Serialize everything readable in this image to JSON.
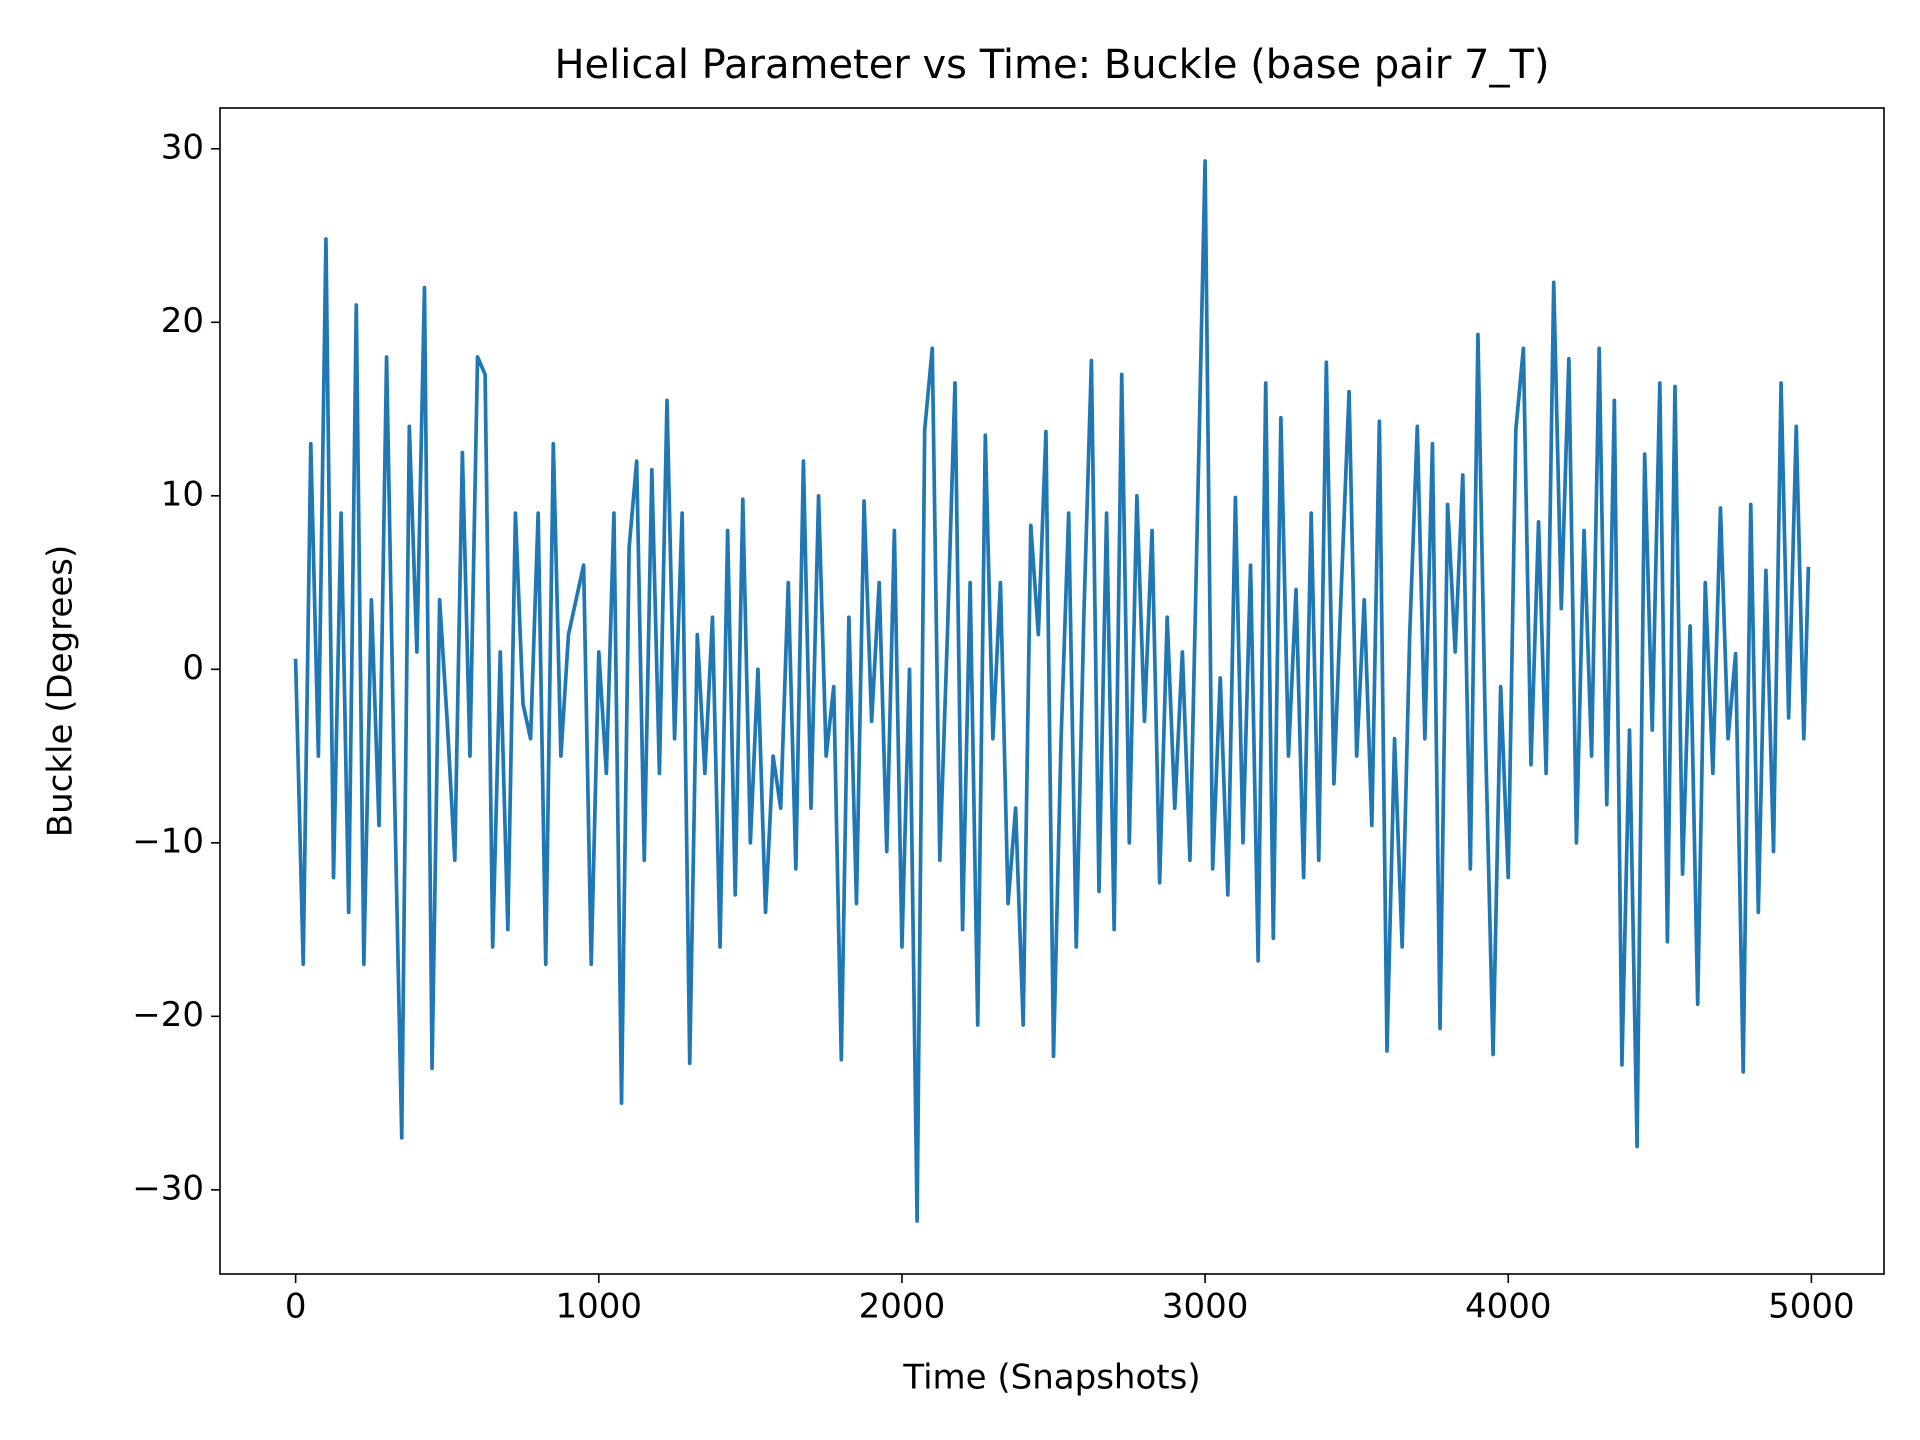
{
  "chart_data": {
    "type": "line",
    "title": "Helical Parameter vs Time: Buckle (base pair  7_T)",
    "x_label": "Time (Snapshots)",
    "y_label": "Buckle (Degrees)",
    "color": "#1f77b4",
    "x": [
      0,
      25,
      50,
      75,
      100,
      125,
      150,
      175,
      200,
      225,
      250,
      275,
      300,
      325,
      350,
      375,
      400,
      425,
      450,
      475,
      500,
      525,
      550,
      575,
      600,
      625,
      650,
      675,
      700,
      725,
      750,
      775,
      800,
      825,
      850,
      875,
      900,
      925,
      950,
      975,
      1000,
      1025,
      1050,
      1075,
      1100,
      1125,
      1150,
      1175,
      1200,
      1225,
      1250,
      1275,
      1300,
      1325,
      1350,
      1375,
      1400,
      1425,
      1450,
      1475,
      1500,
      1525,
      1550,
      1575,
      1600,
      1625,
      1650,
      1675,
      1700,
      1725,
      1750,
      1775,
      1800,
      1825,
      1850,
      1875,
      1900,
      1925,
      1950,
      1975,
      2000,
      2025,
      2050,
      2075,
      2100,
      2125,
      2150,
      2175,
      2200,
      2225,
      2250,
      2275,
      2300,
      2325,
      2350,
      2375,
      2400,
      2425,
      2450,
      2475,
      2500,
      2525,
      2550,
      2575,
      2600,
      2625,
      2650,
      2675,
      2700,
      2725,
      2750,
      2775,
      2800,
      2825,
      2850,
      2875,
      2900,
      2925,
      2950,
      2975,
      3000,
      3025,
      3050,
      3075,
      3100,
      3125,
      3150,
      3175,
      3200,
      3225,
      3250,
      3275,
      3300,
      3325,
      3350,
      3375,
      3400,
      3425,
      3450,
      3475,
      3500,
      3525,
      3550,
      3575,
      3600,
      3625,
      3650,
      3675,
      3700,
      3725,
      3750,
      3775,
      3800,
      3825,
      3850,
      3875,
      3900,
      3925,
      3950,
      3975,
      4000,
      4025,
      4050,
      4075,
      4100,
      4125,
      4150,
      4175,
      4200,
      4225,
      4250,
      4275,
      4300,
      4325,
      4350,
      4375,
      4400,
      4425,
      4450,
      4475,
      4500,
      4525,
      4550,
      4575,
      4600,
      4625,
      4650,
      4675,
      4700,
      4725,
      4750,
      4775,
      4800,
      4825,
      4850,
      4875,
      4900,
      4925,
      4950,
      4975,
      4990
    ],
    "values": [
      0.5,
      -17,
      13,
      -5,
      24.8,
      -12,
      9,
      -14,
      21,
      -17,
      4,
      -9,
      18,
      -6,
      -27,
      14,
      1,
      22,
      -23,
      4,
      -3,
      -11,
      12.5,
      -5,
      18,
      17,
      -16,
      1,
      -15,
      9,
      -2,
      -4,
      9,
      -17,
      13,
      -5,
      2,
      4,
      6,
      -17,
      1,
      -6,
      9,
      -25,
      7,
      12,
      -11,
      11.5,
      -6,
      15.5,
      -4,
      9,
      -22.7,
      2,
      -6,
      3,
      -16,
      8,
      -13,
      9.8,
      -10,
      0,
      -14,
      -5,
      -8,
      5,
      -11.5,
      12,
      -8,
      10,
      -5,
      -1,
      -22.5,
      3,
      -13.5,
      9.7,
      -3,
      5,
      -10.5,
      8,
      -16,
      0,
      -31.8,
      13.8,
      18.5,
      -11,
      2,
      16.5,
      -15,
      5,
      -20.5,
      13.5,
      -4,
      5,
      -13.5,
      -8,
      -20.5,
      8.3,
      2,
      13.7,
      -22.3,
      -4,
      9,
      -16,
      3,
      17.8,
      -12.8,
      9,
      -15,
      17,
      -10,
      10,
      -3,
      8,
      -12.3,
      3,
      -8,
      1,
      -11,
      9,
      29.3,
      -11.5,
      -0.5,
      -13,
      9.9,
      -10,
      6,
      -16.8,
      16.5,
      -15.5,
      14.5,
      -5,
      4.6,
      -12,
      9,
      -11,
      17.7,
      -6.6,
      5,
      16,
      -5,
      4,
      -9,
      14.3,
      -22,
      -4,
      -16,
      2,
      14,
      -4,
      13,
      -20.7,
      9.5,
      1,
      11.2,
      -11.5,
      19.3,
      -4,
      -22.2,
      -1,
      -12,
      13.8,
      18.5,
      -5.5,
      8.5,
      -6,
      22.3,
      3.5,
      17.9,
      -10,
      8,
      -5,
      18.5,
      -7.8,
      15.5,
      -22.8,
      -3.5,
      -27.5,
      12.4,
      -3.5,
      16.5,
      -15.7,
      16.3,
      -11.8,
      2.5,
      -19.3,
      5,
      -6,
      9.3,
      -4,
      0.9,
      -23.2,
      9.5,
      -14,
      5.7,
      -10.5,
      16.5,
      -2.8,
      14,
      -4,
      5.8
    ],
    "xlim": [
      -249.5,
      5239.5
    ],
    "ylim": [
      -34.85,
      32.35
    ],
    "xticks": [
      0,
      1000,
      2000,
      3000,
      4000,
      5000
    ],
    "yticks": [
      {
        "value": -30,
        "label": "−30"
      },
      {
        "value": -20,
        "label": "−20"
      },
      {
        "value": -10,
        "label": "−10"
      },
      0,
      10,
      20,
      30
    ]
  }
}
